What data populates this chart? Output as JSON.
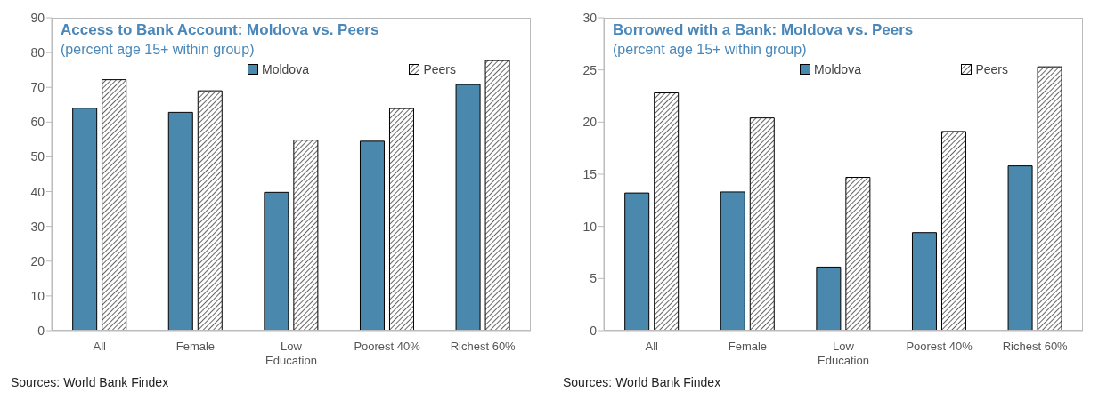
{
  "chart_data": [
    {
      "type": "bar",
      "title": "Access to Bank Account: Moldova vs. Peers",
      "subtitle": "(percent age 15+ within group)",
      "categories": [
        "All",
        "Female",
        "Low Education",
        "Poorest 40%",
        "Richest 60%"
      ],
      "series": [
        {
          "name": "Moldova",
          "color": "#4a89ad",
          "values": [
            64,
            62.8,
            39.8,
            54.5,
            70.8
          ]
        },
        {
          "name": "Peers",
          "color": "#000000",
          "values": [
            72.2,
            69,
            54.8,
            63.9,
            77.7
          ]
        }
      ],
      "ylim": [
        0,
        90
      ],
      "yticks": [
        0,
        10,
        20,
        30,
        40,
        50,
        60,
        70,
        80,
        90
      ],
      "grid": false,
      "legend": "top",
      "annotations": [
        "Sources: World Bank Findex"
      ]
    },
    {
      "type": "bar",
      "title": "Borrowed with a Bank: Moldova vs. Peers",
      "subtitle": "(percent age 15+ within group)",
      "categories": [
        "All",
        "Female",
        "Low Education",
        "Poorest 40%",
        "Richest 60%"
      ],
      "series": [
        {
          "name": "Moldova",
          "color": "#4a89ad",
          "values": [
            13.2,
            13.3,
            6.1,
            9.4,
            15.8
          ]
        },
        {
          "name": "Peers",
          "color": "#000000",
          "values": [
            22.8,
            20.4,
            14.7,
            19.1,
            25.3
          ]
        }
      ],
      "ylim": [
        0,
        30
      ],
      "yticks": [
        0,
        5,
        10,
        15,
        20,
        25,
        30
      ],
      "grid": false,
      "legend": "top",
      "annotations": [
        "Sources: World Bank Findex"
      ]
    }
  ]
}
